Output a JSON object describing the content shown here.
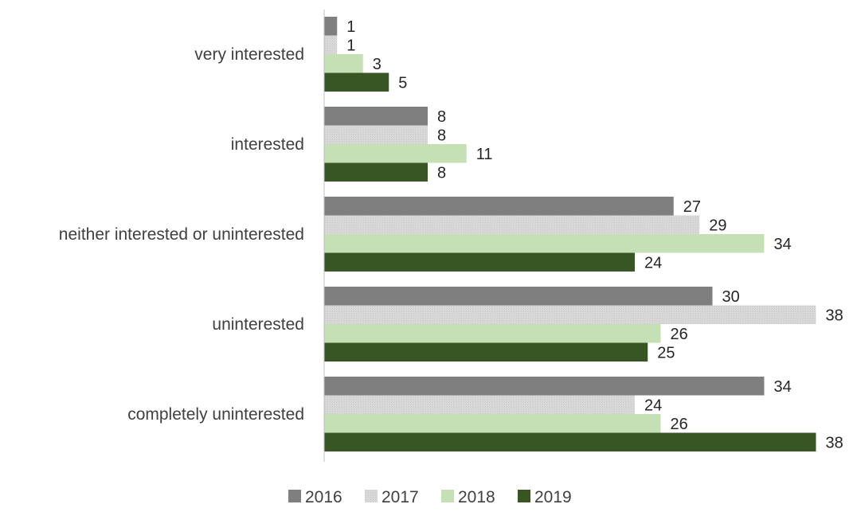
{
  "chart_data": {
    "type": "bar",
    "orientation": "horizontal",
    "title": "",
    "xlabel": "",
    "ylabel": "",
    "categories": [
      "very interested",
      "interested",
      "neither interested or uninterested",
      "uninterested",
      "completely uninterested"
    ],
    "series": [
      {
        "name": "2016",
        "color": "#7f7f7f",
        "values": [
          1,
          8,
          27,
          30,
          34
        ]
      },
      {
        "name": "2017",
        "color": "#d9d9d9",
        "values": [
          1,
          8,
          29,
          38,
          24
        ]
      },
      {
        "name": "2018",
        "color": "#c5e0b4",
        "values": [
          3,
          11,
          34,
          26,
          26
        ]
      },
      {
        "name": "2019",
        "color": "#375623",
        "values": [
          5,
          8,
          24,
          25,
          38
        ]
      }
    ],
    "xlim": [
      0,
      38
    ],
    "grid": false,
    "legend_position": "bottom"
  }
}
